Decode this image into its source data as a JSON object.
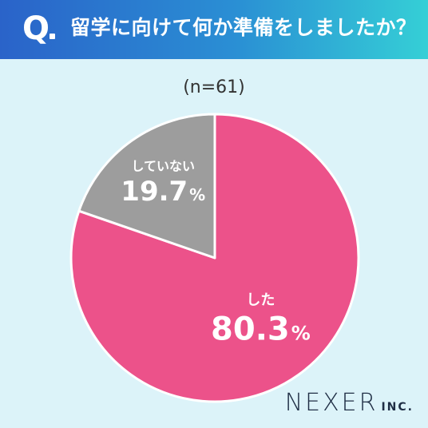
{
  "header": {
    "q_label": "Q",
    "question": "留学に向けて何か準備をしましたか？"
  },
  "sample_label": "(n=61)",
  "chart_data": {
    "type": "pie",
    "start": "top",
    "direction": "clockwise",
    "slices": [
      {
        "label": "した",
        "value": 80.3,
        "display": "80.3",
        "unit": "%",
        "color": "#ec528a"
      },
      {
        "label": "していない",
        "value": 19.7,
        "display": "19.7",
        "unit": "%",
        "color": "#9d9d9d"
      }
    ]
  },
  "logo": {
    "main": "NEXER",
    "sub": "INC."
  },
  "colors": {
    "background": "#dcf3f9",
    "header_start": "#2a63c9",
    "header_end": "#35cfd6"
  }
}
